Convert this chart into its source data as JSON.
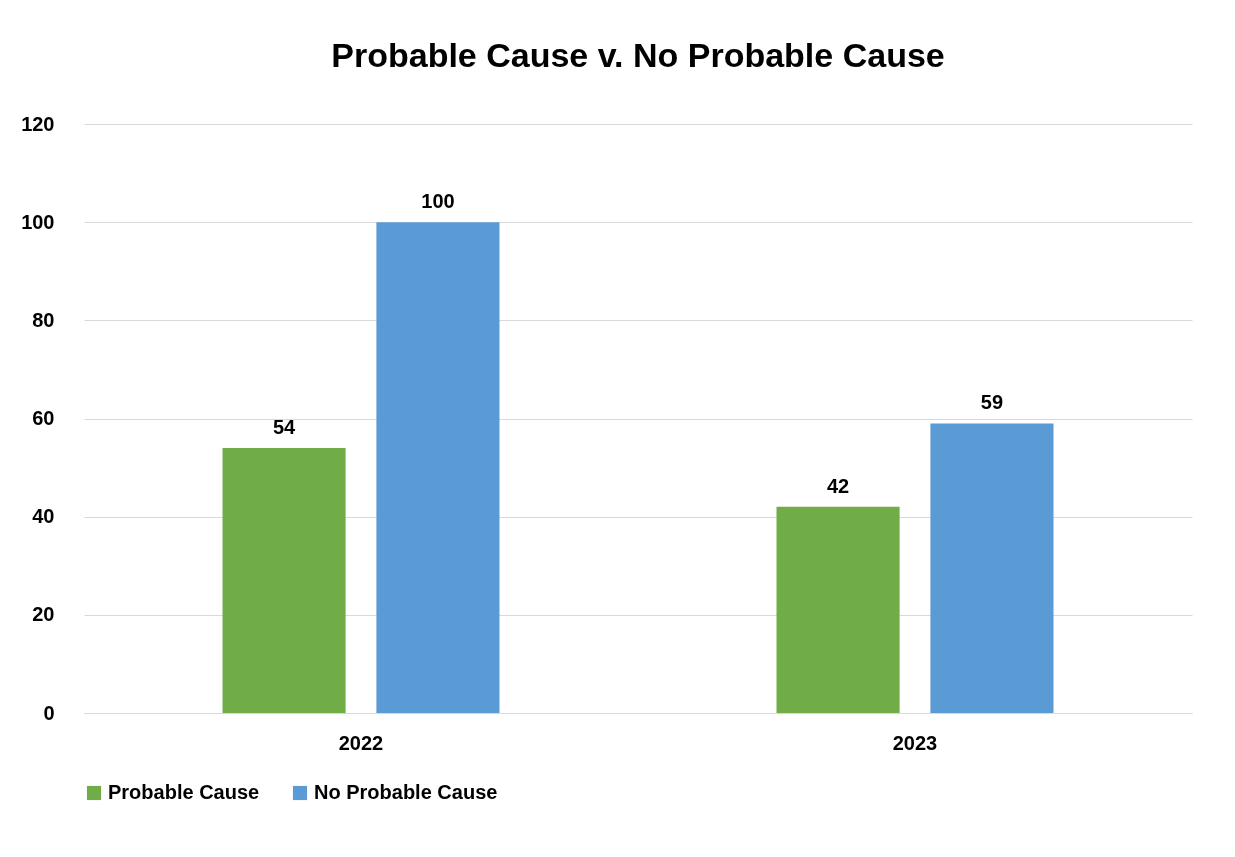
{
  "chart_data": {
    "type": "bar",
    "title": "Probable Cause v. No Probable Cause",
    "categories": [
      "2022",
      "2023"
    ],
    "series": [
      {
        "name": "Probable Cause",
        "color": "#70ad47",
        "values": [
          54,
          42
        ]
      },
      {
        "name": "No Probable Cause",
        "color": "#5b9bd5",
        "values": [
          100,
          59
        ]
      }
    ],
    "ylim": [
      0,
      120
    ],
    "yticks": [
      0,
      20,
      40,
      60,
      80,
      100,
      120
    ],
    "grid": "y",
    "legend": "bottom",
    "data_labels": true
  }
}
